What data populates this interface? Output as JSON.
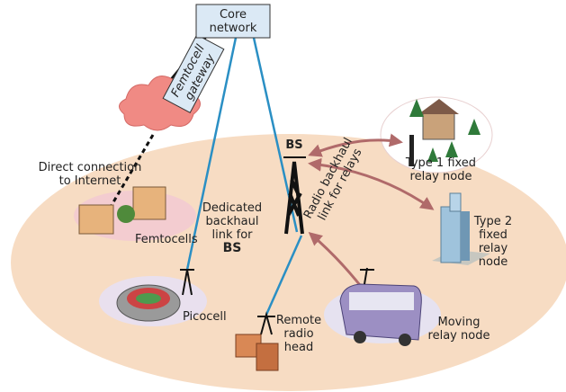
{
  "labels": {
    "core_network": [
      "Core",
      "network"
    ],
    "femtocell_gateway": [
      "Femtocell",
      "gateway"
    ],
    "direct_connection": [
      "Direct connection",
      "to Internet"
    ],
    "femtocells": "Femtocells",
    "bs_top": "BS",
    "radio_backhaul": [
      "Radio backhaul",
      "link for relays"
    ],
    "type1": [
      "Type 1 fixed",
      "relay node"
    ],
    "type2": [
      "Type 2",
      "fixed",
      "relay",
      "node"
    ],
    "dedicated": [
      "Dedicated",
      "backhaul",
      "link for",
      "BS"
    ],
    "picocell": "Picocell",
    "remote": [
      "Remote",
      "radio",
      "head"
    ],
    "moving": [
      "Moving",
      "relay node"
    ]
  }
}
